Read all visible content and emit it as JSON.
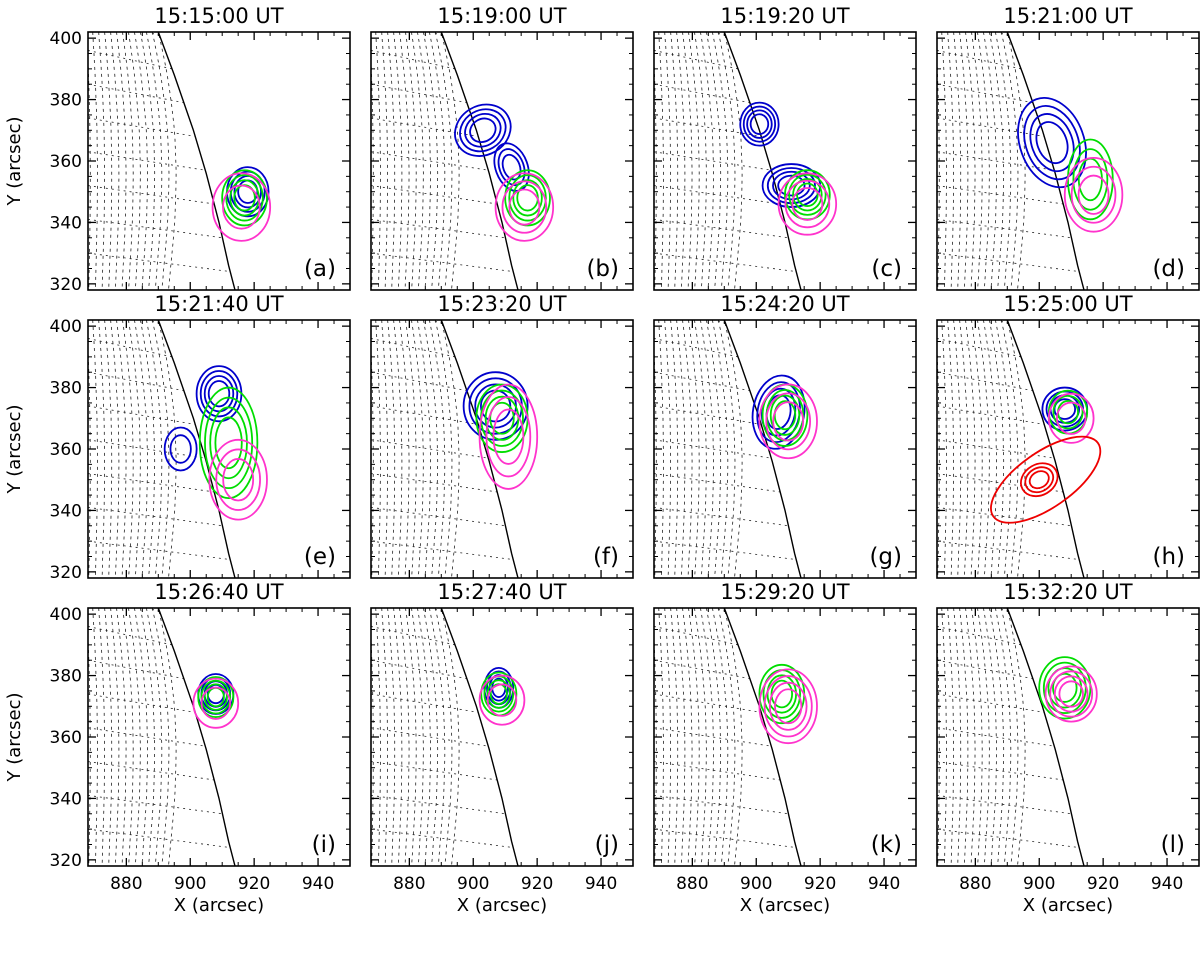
{
  "chart_data": {
    "type": "contour",
    "xlabel": "X (arcsec)",
    "ylabel": "Y (arcsec)",
    "xlim": [
      868,
      950
    ],
    "ylim": [
      318,
      402
    ],
    "xticks": [
      880,
      900,
      920,
      940
    ],
    "yticks": [
      320,
      340,
      360,
      380,
      400
    ],
    "limb": [
      [
        890,
        402
      ],
      [
        895,
        388
      ],
      [
        901,
        370
      ],
      [
        905,
        356
      ],
      [
        909,
        340
      ],
      [
        912,
        326
      ],
      [
        914,
        318
      ]
    ],
    "panels": [
      {
        "title": "15:15:00 UT",
        "label": "(a)",
        "sources": [
          {
            "color": "#0000cc",
            "center": [
              918,
              350
            ],
            "rx": 6.5,
            "ry": 8,
            "angle": 0,
            "levels": 4
          },
          {
            "color": "#00dd00",
            "center": [
              917,
              348
            ],
            "rx": 7,
            "ry": 9,
            "angle": 0,
            "levels": 4
          },
          {
            "color": "#ff33cc",
            "center": [
              916,
              345
            ],
            "rx": 9,
            "ry": 11,
            "angle": 0,
            "levels": 2
          }
        ]
      },
      {
        "title": "15:19:00 UT",
        "label": "(b)",
        "sources": [
          {
            "color": "#0000cc",
            "center": [
              903,
              370
            ],
            "rx": 9,
            "ry": 8,
            "angle": -30,
            "levels": 4
          },
          {
            "color": "#0000cc",
            "center": [
              912,
              358
            ],
            "rx": 5,
            "ry": 8,
            "angle": -20,
            "levels": 3
          },
          {
            "color": "#00dd00",
            "center": [
              917,
              348
            ],
            "rx": 7,
            "ry": 9,
            "angle": 0,
            "levels": 4
          },
          {
            "color": "#ff33cc",
            "center": [
              916,
              345
            ],
            "rx": 9,
            "ry": 11,
            "angle": 0,
            "levels": 3
          }
        ]
      },
      {
        "title": "15:19:20 UT",
        "label": "(c)",
        "sources": [
          {
            "color": "#0000cc",
            "center": [
              901,
              372
            ],
            "rx": 6,
            "ry": 7,
            "angle": 0,
            "levels": 4
          },
          {
            "color": "#0000cc",
            "center": [
              911,
              352
            ],
            "rx": 9,
            "ry": 7,
            "angle": 0,
            "levels": 4
          },
          {
            "color": "#00dd00",
            "center": [
              916,
              349
            ],
            "rx": 7,
            "ry": 8,
            "angle": 0,
            "levels": 4
          },
          {
            "color": "#ff33cc",
            "center": [
              916,
              346
            ],
            "rx": 9,
            "ry": 10,
            "angle": 0,
            "levels": 3
          }
        ]
      },
      {
        "title": "15:21:00 UT",
        "label": "(d)",
        "sources": [
          {
            "color": "#0000cc",
            "center": [
              904,
              366
            ],
            "rx": 10,
            "ry": 15,
            "angle": -20,
            "levels": 4
          },
          {
            "color": "#00dd00",
            "center": [
              916,
              354
            ],
            "rx": 7,
            "ry": 13,
            "angle": 0,
            "levels": 3
          },
          {
            "color": "#ff33cc",
            "center": [
              917,
              349
            ],
            "rx": 9,
            "ry": 12,
            "angle": 0,
            "levels": 3
          }
        ]
      },
      {
        "title": "15:21:40 UT",
        "label": "(e)",
        "sources": [
          {
            "color": "#0000cc",
            "center": [
              909,
              378
            ],
            "rx": 7,
            "ry": 9,
            "angle": 0,
            "levels": 4
          },
          {
            "color": "#0000cc",
            "center": [
              897,
              360
            ],
            "rx": 5,
            "ry": 7,
            "angle": 0,
            "levels": 2
          },
          {
            "color": "#00dd00",
            "center": [
              912,
              362
            ],
            "rx": 9,
            "ry": 18,
            "angle": 0,
            "levels": 4
          },
          {
            "color": "#ff33cc",
            "center": [
              915,
              350
            ],
            "rx": 9,
            "ry": 13,
            "angle": 0,
            "levels": 3
          }
        ]
      },
      {
        "title": "15:23:20 UT",
        "label": "(f)",
        "sources": [
          {
            "color": "#0000cc",
            "center": [
              907,
              374
            ],
            "rx": 10,
            "ry": 11,
            "angle": 0,
            "levels": 4
          },
          {
            "color": "#00dd00",
            "center": [
              909,
              370
            ],
            "rx": 8,
            "ry": 11,
            "angle": 0,
            "levels": 4
          },
          {
            "color": "#ff33cc",
            "center": [
              911,
              364
            ],
            "rx": 9,
            "ry": 17,
            "angle": 0,
            "levels": 3
          }
        ]
      },
      {
        "title": "15:24:20 UT",
        "label": "(g)",
        "sources": [
          {
            "color": "#0000cc",
            "center": [
              907,
              372
            ],
            "rx": 8,
            "ry": 12,
            "angle": 10,
            "levels": 4
          },
          {
            "color": "#00dd00",
            "center": [
              909,
              371
            ],
            "rx": 7,
            "ry": 10,
            "angle": 0,
            "levels": 4
          },
          {
            "color": "#ff33cc",
            "center": [
              910,
              369
            ],
            "rx": 9,
            "ry": 12,
            "angle": 0,
            "levels": 3
          }
        ]
      },
      {
        "title": "15:25:00 UT",
        "label": "(h)",
        "sources": [
          {
            "color": "#0000cc",
            "center": [
              908,
              373
            ],
            "rx": 7,
            "ry": 7,
            "angle": 0,
            "levels": 4
          },
          {
            "color": "#00dd00",
            "center": [
              909,
              372
            ],
            "rx": 6,
            "ry": 7,
            "angle": 0,
            "levels": 3
          },
          {
            "color": "#ff33cc",
            "center": [
              910,
              370
            ],
            "rx": 7,
            "ry": 8,
            "angle": 0,
            "levels": 2
          },
          {
            "color": "#ee0000",
            "center": [
              900,
              350
            ],
            "rx": 6,
            "ry": 5,
            "angle": -30,
            "levels": 3
          },
          {
            "color": "#ee0000",
            "center": [
              902,
              350
            ],
            "rx": 20,
            "ry": 9,
            "angle": -35,
            "levels": 1
          }
        ]
      },
      {
        "title": "15:26:40 UT",
        "label": "(i)",
        "sources": [
          {
            "color": "#0000cc",
            "center": [
              908,
              374
            ],
            "rx": 5.5,
            "ry": 6.5,
            "angle": 0,
            "levels": 4
          },
          {
            "color": "#00dd00",
            "center": [
              908,
              373
            ],
            "rx": 5.5,
            "ry": 6.5,
            "angle": 0,
            "levels": 4
          },
          {
            "color": "#ff33cc",
            "center": [
              908,
              371
            ],
            "rx": 7,
            "ry": 8,
            "angle": 0,
            "levels": 2
          }
        ]
      },
      {
        "title": "15:27:40 UT",
        "label": "(j)",
        "sources": [
          {
            "color": "#0000cc",
            "center": [
              908,
              376
            ],
            "rx": 4.5,
            "ry": 6.5,
            "angle": 0,
            "levels": 4
          },
          {
            "color": "#00dd00",
            "center": [
              908,
              374
            ],
            "rx": 5.5,
            "ry": 7,
            "angle": 0,
            "levels": 4
          },
          {
            "color": "#ff33cc",
            "center": [
              909,
              372
            ],
            "rx": 7,
            "ry": 8,
            "angle": 0,
            "levels": 2
          }
        ]
      },
      {
        "title": "15:29:20 UT",
        "label": "(k)",
        "sources": [
          {
            "color": "#00dd00",
            "center": [
              908,
              374
            ],
            "rx": 7,
            "ry": 9.5,
            "angle": 0,
            "levels": 4
          },
          {
            "color": "#ff33cc",
            "center": [
              910,
              370
            ],
            "rx": 9,
            "ry": 12,
            "angle": 0,
            "levels": 4
          }
        ]
      },
      {
        "title": "15:32:20 UT",
        "label": "(l)",
        "sources": [
          {
            "color": "#00dd00",
            "center": [
              908,
              376
            ],
            "rx": 8,
            "ry": 10,
            "angle": 0,
            "levels": 4
          },
          {
            "color": "#ff33cc",
            "center": [
              910,
              374
            ],
            "rx": 8,
            "ry": 9,
            "angle": 0,
            "levels": 4
          }
        ]
      }
    ]
  }
}
